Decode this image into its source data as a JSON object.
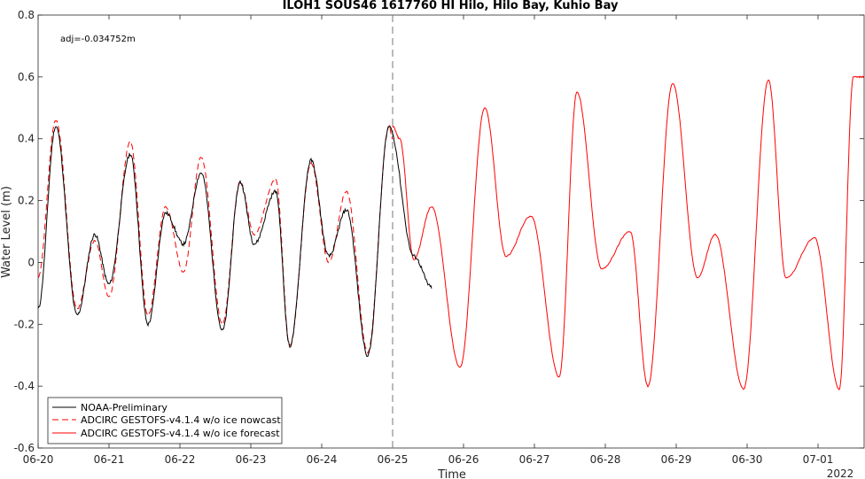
{
  "chart_data": {
    "type": "line",
    "title": "ILOH1 SOUS46 1617760 HI Hilo, Hilo Bay, Kuhio Bay",
    "xlabel": "Time",
    "ylabel": "Water Level (m)",
    "annotation": "adj=-0.034752m",
    "year_label": "2022",
    "x_range_days": [
      0,
      11.65
    ],
    "ylim": [
      -0.6,
      0.8
    ],
    "y_ticks": [
      -0.6,
      -0.4,
      -0.2,
      0,
      0.2,
      0.4,
      0.6,
      0.8
    ],
    "y_tick_labels": [
      "-0.6",
      "-0.4",
      "-0.2",
      "0",
      "0.2",
      "0.4",
      "0.6",
      "0.8"
    ],
    "x_ticks": [
      0,
      1,
      2,
      3,
      4,
      5,
      6,
      7,
      8,
      9,
      10,
      11
    ],
    "x_tick_labels": [
      "06-20",
      "06-21",
      "06-22",
      "06-23",
      "06-24",
      "06-25",
      "06-26",
      "06-27",
      "06-28",
      "06-29",
      "06-30",
      "07-01"
    ],
    "nowcast_forecast_split": 5,
    "legend_position": "bottom-left",
    "series": [
      {
        "name": "NOAA-Preliminary",
        "color": "#000000",
        "style": "solid",
        "x": [
          0,
          0.25,
          0.55,
          0.8,
          1.0,
          1.3,
          1.55,
          1.8,
          2.05,
          2.3,
          2.6,
          2.85,
          3.05,
          3.35,
          3.55,
          3.85,
          4.1,
          4.35,
          4.65,
          4.95,
          5.3,
          5.55
        ],
        "y": [
          -0.15,
          0.44,
          -0.17,
          0.09,
          -0.07,
          0.35,
          -0.2,
          0.16,
          0.06,
          0.29,
          -0.22,
          0.26,
          0.06,
          0.23,
          -0.27,
          0.33,
          0.02,
          0.17,
          -0.3,
          0.44,
          0.02,
          -0.08
        ]
      },
      {
        "name": "ADCIRC GESTOFS-v4.1.4 w/o ice nowcast",
        "color": "#ff0000",
        "style": "dashed",
        "x": [
          0,
          0.25,
          0.55,
          0.8,
          1.0,
          1.3,
          1.55,
          1.8,
          2.05,
          2.3,
          2.6,
          2.85,
          3.05,
          3.35,
          3.55,
          3.85,
          4.1,
          4.35,
          4.65,
          4.95,
          5.0
        ],
        "y": [
          -0.05,
          0.46,
          -0.15,
          0.07,
          -0.11,
          0.39,
          -0.17,
          0.18,
          -0.03,
          0.34,
          -0.2,
          0.26,
          0.09,
          0.27,
          -0.27,
          0.32,
          0.0,
          0.23,
          -0.29,
          0.44,
          0.4
        ]
      },
      {
        "name": "ADCIRC GESTOFS-v4.1.4 w/o ice forecast",
        "color": "#ff0000",
        "style": "solid",
        "x": [
          5.0,
          5.1,
          5.3,
          5.55,
          5.95,
          6.3,
          6.6,
          6.95,
          7.35,
          7.6,
          7.95,
          8.35,
          8.6,
          8.95,
          9.3,
          9.55,
          9.95,
          10.3,
          10.55,
          10.95,
          11.3,
          11.5,
          11.65
        ],
        "y": [
          0.44,
          0.4,
          0.01,
          0.18,
          -0.34,
          0.5,
          0.02,
          0.15,
          -0.37,
          0.55,
          -0.02,
          0.1,
          -0.4,
          0.58,
          -0.05,
          0.09,
          -0.41,
          0.59,
          -0.05,
          0.08,
          -0.41,
          0.6,
          0.6
        ]
      }
    ]
  }
}
